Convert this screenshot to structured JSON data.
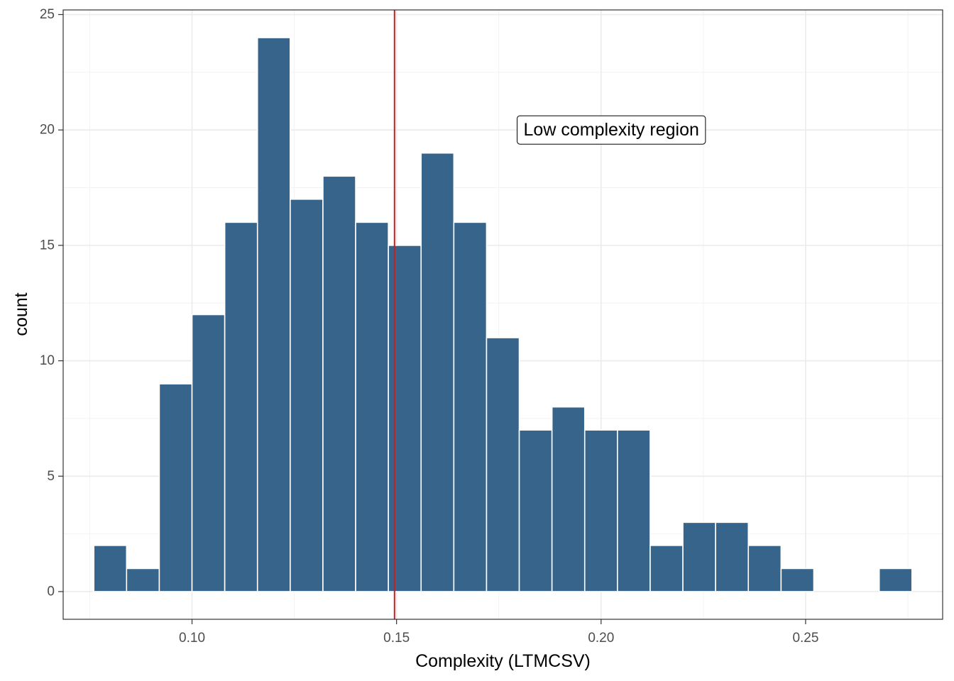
{
  "chart_data": {
    "type": "bar",
    "subtype": "histogram",
    "xlabel": "Complexity (LTMCSV)",
    "ylabel": "count",
    "xlim": [
      0.0685,
      0.2835
    ],
    "ylim": [
      -1.2,
      25.2
    ],
    "x_ticks": [
      {
        "value": 0.1,
        "label": "0.10"
      },
      {
        "value": 0.15,
        "label": "0.15"
      },
      {
        "value": 0.2,
        "label": "0.20"
      },
      {
        "value": 0.25,
        "label": "0.25"
      }
    ],
    "y_ticks": [
      {
        "value": 0,
        "label": "0"
      },
      {
        "value": 5,
        "label": "5"
      },
      {
        "value": 10,
        "label": "10"
      },
      {
        "value": 15,
        "label": "15"
      },
      {
        "value": 20,
        "label": "20"
      },
      {
        "value": 25,
        "label": "25"
      }
    ],
    "bin_width": 0.008,
    "bins": [
      {
        "center": 0.08,
        "count": 2
      },
      {
        "center": 0.088,
        "count": 1
      },
      {
        "center": 0.096,
        "count": 9
      },
      {
        "center": 0.104,
        "count": 12
      },
      {
        "center": 0.112,
        "count": 16
      },
      {
        "center": 0.12,
        "count": 24
      },
      {
        "center": 0.128,
        "count": 17
      },
      {
        "center": 0.136,
        "count": 18
      },
      {
        "center": 0.144,
        "count": 16
      },
      {
        "center": 0.152,
        "count": 15
      },
      {
        "center": 0.16,
        "count": 19
      },
      {
        "center": 0.168,
        "count": 16
      },
      {
        "center": 0.176,
        "count": 11
      },
      {
        "center": 0.184,
        "count": 7
      },
      {
        "center": 0.192,
        "count": 8
      },
      {
        "center": 0.2,
        "count": 7
      },
      {
        "center": 0.208,
        "count": 7
      },
      {
        "center": 0.216,
        "count": 2
      },
      {
        "center": 0.224,
        "count": 3
      },
      {
        "center": 0.232,
        "count": 3
      },
      {
        "center": 0.24,
        "count": 2
      },
      {
        "center": 0.248,
        "count": 1
      },
      {
        "center": 0.256,
        "count": 0
      },
      {
        "center": 0.264,
        "count": 0
      },
      {
        "center": 0.272,
        "count": 1
      }
    ],
    "vline": {
      "x": 0.1495,
      "color": "#d11a1a"
    },
    "annotation": {
      "text": "Low complexity region",
      "x": 0.2025,
      "y": 20
    },
    "bar_color": "#36648b",
    "grid": true
  }
}
